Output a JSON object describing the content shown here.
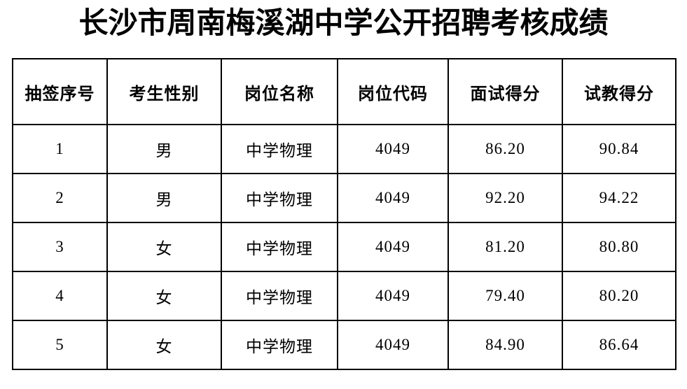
{
  "title": "长沙市周南梅溪湖中学公开招聘考核成绩",
  "table": {
    "columns": [
      "抽签序号",
      "考生性别",
      "岗位名称",
      "岗位代码",
      "面试得分",
      "试教得分"
    ],
    "rows": [
      [
        "1",
        "男",
        "中学物理",
        "4049",
        "86.20",
        "90.84"
      ],
      [
        "2",
        "男",
        "中学物理",
        "4049",
        "92.20",
        "94.22"
      ],
      [
        "3",
        "女",
        "中学物理",
        "4049",
        "81.20",
        "80.80"
      ],
      [
        "4",
        "女",
        "中学物理",
        "4049",
        "79.40",
        "80.20"
      ],
      [
        "5",
        "女",
        "中学物理",
        "4049",
        "84.90",
        "86.64"
      ]
    ]
  },
  "colors": {
    "text": "#000000",
    "border": "#000000",
    "background": "#ffffff"
  }
}
